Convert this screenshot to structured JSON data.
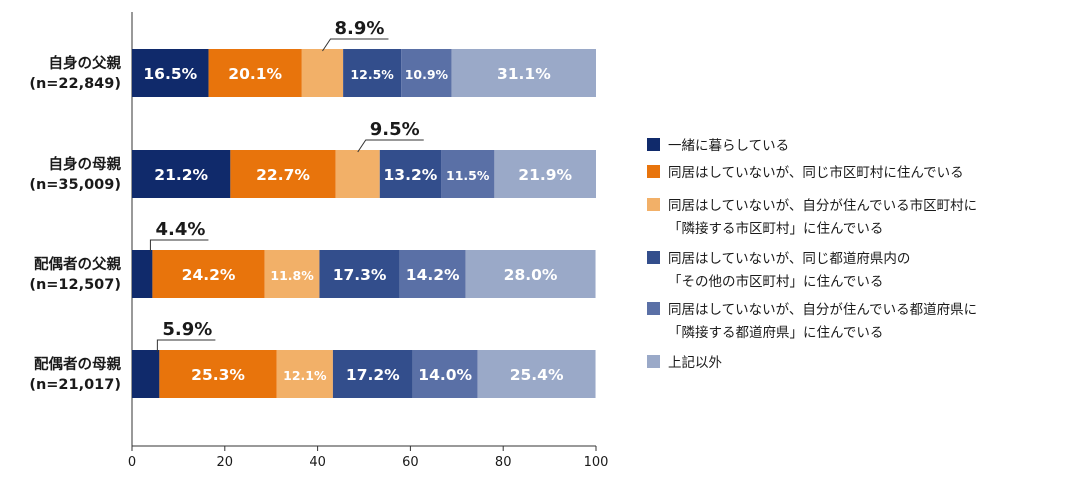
{
  "chart_data": {
    "type": "bar",
    "orientation": "horizontal",
    "stacked": true,
    "categories": [
      {
        "name": "自身の父親",
        "n": "(n=22,849)"
      },
      {
        "name": "自身の母親",
        "n": "(n=35,009)"
      },
      {
        "name": "配偶者の父親",
        "n": "(n=12,507)"
      },
      {
        "name": "配偶者の母親",
        "n": "(n=21,017)"
      }
    ],
    "series": [
      {
        "name": "一緒に暮らしている",
        "color": "#102a6b",
        "values": [
          16.5,
          21.2,
          4.4,
          5.9
        ],
        "labels": [
          "16.5%",
          "21.2%",
          "4.4%",
          "5.9%"
        ]
      },
      {
        "name": "同居はしていないが、同じ市区町村に住んでいる",
        "color": "#e8740c",
        "values": [
          20.1,
          22.7,
          24.2,
          25.3
        ],
        "labels": [
          "20.1%",
          "22.7%",
          "24.2%",
          "25.3%"
        ]
      },
      {
        "name": "同居はしていないが、自分が住んでいる市区町村に「隣接する市区町村」に住んでいる",
        "color": "#f2b068",
        "values": [
          8.9,
          9.5,
          11.8,
          12.1
        ],
        "labels": [
          "8.9%",
          "9.5%",
          "11.8%",
          "12.1%"
        ]
      },
      {
        "name": "同居はしていないが、同じ都道府県内の「その他の市区町村」に住んでいる",
        "color": "#334e8c",
        "values": [
          12.5,
          13.2,
          17.3,
          17.2
        ],
        "labels": [
          "12.5%",
          "13.2%",
          "17.3%",
          "17.2%"
        ]
      },
      {
        "name": "同居はしていないが、自分が住んでいる都道府県に「隣接する都道府県」に住んでいる",
        "color": "#5a70a6",
        "values": [
          10.9,
          11.5,
          14.2,
          14.0
        ],
        "labels": [
          "10.9%",
          "11.5%",
          "14.2%",
          "14.0%"
        ]
      },
      {
        "name": "上記以外",
        "color": "#9aa9c8",
        "values": [
          31.1,
          21.9,
          28.0,
          25.4
        ],
        "labels": [
          "31.1%",
          "21.9%",
          "28.0%",
          "25.4%"
        ]
      }
    ],
    "legend_lines": [
      [
        "一緒に暮らしている"
      ],
      [
        "同居はしていないが、同じ市区町村に住んでいる"
      ],
      [
        "同居はしていないが、自分が住んでいる市区町村に",
        "「隣接する市区町村」に住んでいる"
      ],
      [
        "同居はしていないが、同じ都道府県内の",
        "「その他の市区町村」に住んでいる"
      ],
      [
        "同居はしていないが、自分が住んでいる都道府県に",
        "「隣接する都道府県」に住んでいる"
      ],
      [
        "上記以外"
      ]
    ],
    "xlim": [
      0,
      100
    ],
    "xticks": [
      "0",
      "20",
      "40",
      "60",
      "80",
      "100"
    ],
    "callouts": [
      {
        "category": 0,
        "series": 2,
        "label": "8.9%"
      },
      {
        "category": 1,
        "series": 2,
        "label": "9.5%"
      },
      {
        "category": 2,
        "series": 0,
        "label": "4.4%"
      },
      {
        "category": 3,
        "series": 0,
        "label": "5.9%"
      }
    ],
    "legend_position": "right"
  }
}
